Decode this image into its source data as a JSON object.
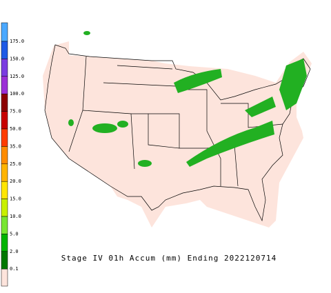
{
  "legend": {
    "labels": [
      "175.0",
      "150.0",
      "125.0",
      "100.0",
      "75.0",
      "50.0",
      "35.0",
      "25.0",
      "20.0",
      "15.0",
      "10.0",
      "5.0",
      "2.0",
      "0.1"
    ],
    "colors": [
      "#4aa8ff",
      "#1e5ae6",
      "#7a3ce0",
      "#9b2fd6",
      "#8c0000",
      "#c80000",
      "#ff3c00",
      "#ff8c00",
      "#ffb400",
      "#ffe600",
      "#c8f000",
      "#78e632",
      "#00b400",
      "#007800",
      "#fde4dc"
    ]
  },
  "caption": "Stage IV 01h Accum (mm) Ending 2022120714"
}
